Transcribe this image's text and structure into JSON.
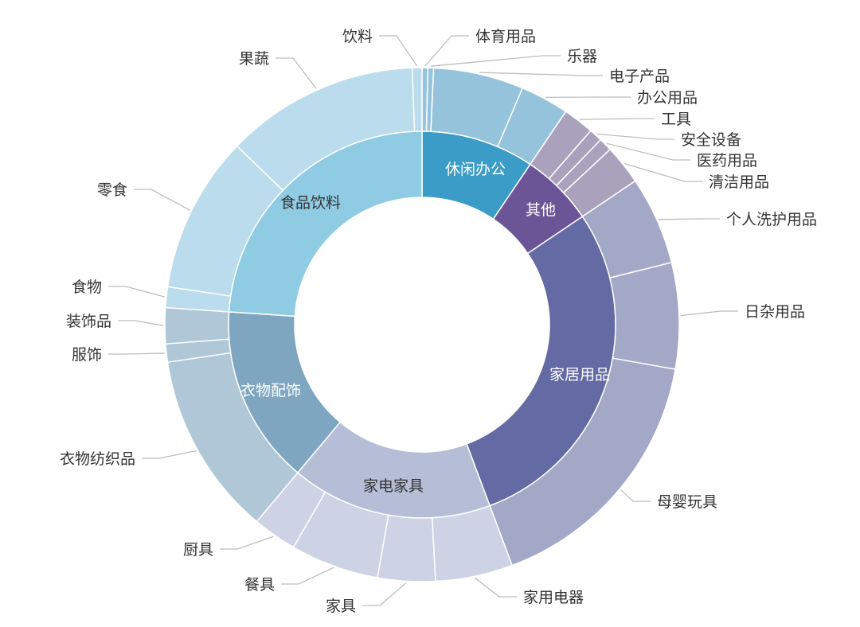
{
  "chart_data": {
    "type": "sunburst",
    "unit": "degrees of arc (estimated share of full circle)",
    "categories": [
      {
        "name": "休闲办公",
        "color": "#3c9cc8",
        "child_color": "#95c3dc",
        "text_color": "#ffffff",
        "children": [
          {
            "name": "体育用品",
            "value": 1.3
          },
          {
            "name": "乐器",
            "value": 1.3
          },
          {
            "name": "电子产品",
            "value": 20.4
          },
          {
            "name": "办公用品",
            "value": 11.0
          }
        ]
      },
      {
        "name": "其他",
        "color": "#6b5596",
        "child_color": "#aaa1bd",
        "text_color": "#ffffff",
        "children": [
          {
            "name": "工具",
            "value": 7
          },
          {
            "name": "安全设备",
            "value": 3
          },
          {
            "name": "医药用品",
            "value": 3
          },
          {
            "name": "清洁用品",
            "value": 9
          }
        ]
      },
      {
        "name": "家居用品",
        "color": "#646aa3",
        "child_color": "#a4a8c7",
        "text_color": "#ffffff",
        "children": [
          {
            "name": "个人洗护用品",
            "value": 20
          },
          {
            "name": "日杂用品",
            "value": 24
          },
          {
            "name": "母婴玩具",
            "value": 59.5
          }
        ]
      },
      {
        "name": "家电家具",
        "color": "#b5bed6",
        "child_color": "#cdd3e4",
        "text_color": "#333333",
        "children": [
          {
            "name": "家用电器",
            "value": 17.5
          },
          {
            "name": "家具",
            "value": 13
          },
          {
            "name": "餐具",
            "value": 20
          },
          {
            "name": "厨具",
            "value": 10
          }
        ]
      },
      {
        "name": "衣物配饰",
        "color": "#7ea6c1",
        "child_color": "#afc7d7",
        "text_color": "#ffffff",
        "children": [
          {
            "name": "衣物纺织品",
            "value": 41.6
          },
          {
            "name": "服饰",
            "value": 4.1
          },
          {
            "name": "装饰品",
            "value": 8.1
          }
        ]
      },
      {
        "name": "食品饮料",
        "color": "#8fcbe3",
        "child_color": "#badcec",
        "text_color": "#333333",
        "children": [
          {
            "name": "食物",
            "value": 4.7
          },
          {
            "name": "零食",
            "value": 35.5
          },
          {
            "name": "果蔬",
            "value": 43.8
          },
          {
            "name": "饮料",
            "value": 2.2
          }
        ]
      }
    ],
    "legend": "none"
  }
}
